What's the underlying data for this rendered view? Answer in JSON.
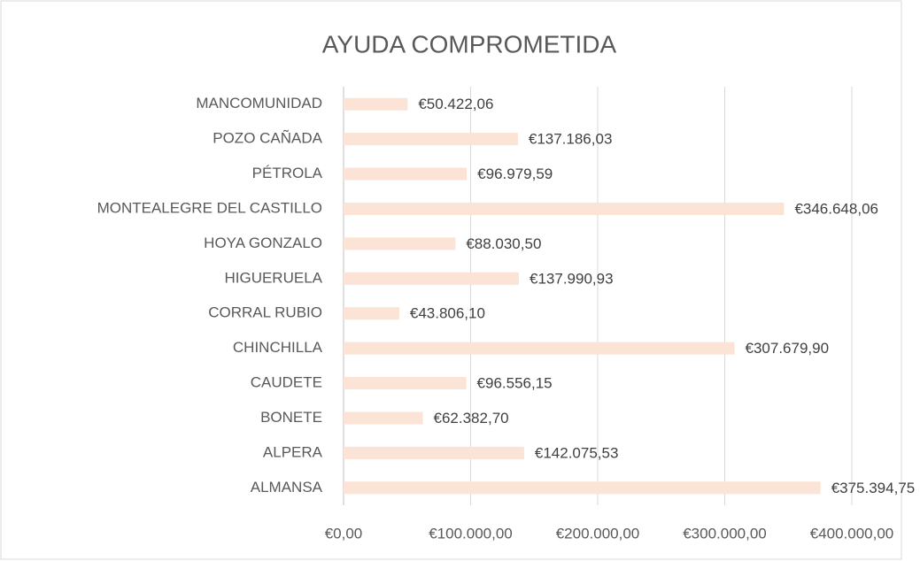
{
  "chart_data": {
    "type": "bar",
    "orientation": "horizontal",
    "title": "AYUDA COMPROMETIDA",
    "categories": [
      "MANCOMUNIDAD",
      "POZO CAÑADA",
      "PÉTROLA",
      "MONTEALEGRE DEL CASTILLO",
      "HOYA GONZALO",
      "HIGUERUELA",
      "CORRAL RUBIO",
      "CHINCHILLA",
      "CAUDETE",
      "BONETE",
      "ALPERA",
      "ALMANSA"
    ],
    "values": [
      50422.06,
      137186.03,
      96979.59,
      346648.06,
      88030.5,
      137990.93,
      43806.1,
      307679.9,
      96556.15,
      62382.7,
      142075.53,
      375394.75
    ],
    "value_labels": [
      "€50.422,06",
      "€137.186,03",
      "€96.979,59",
      "€346.648,06",
      "€88.030,50",
      "€137.990,93",
      "€43.806,10",
      "€307.679,90",
      "€96.556,15",
      "€62.382,70",
      "€142.075,53",
      "€375.394,75"
    ],
    "color": "#fbe3d5",
    "xlim": [
      0,
      400000
    ],
    "xticks": [
      {
        "value": 0,
        "label": "€0,00"
      },
      {
        "value": 100000,
        "label": "€100.000,00"
      },
      {
        "value": 200000,
        "label": "€200.000,00"
      },
      {
        "value": 300000,
        "label": "€300.000,00"
      },
      {
        "value": 400000,
        "label": "€400.000,00"
      }
    ],
    "grid": true
  }
}
